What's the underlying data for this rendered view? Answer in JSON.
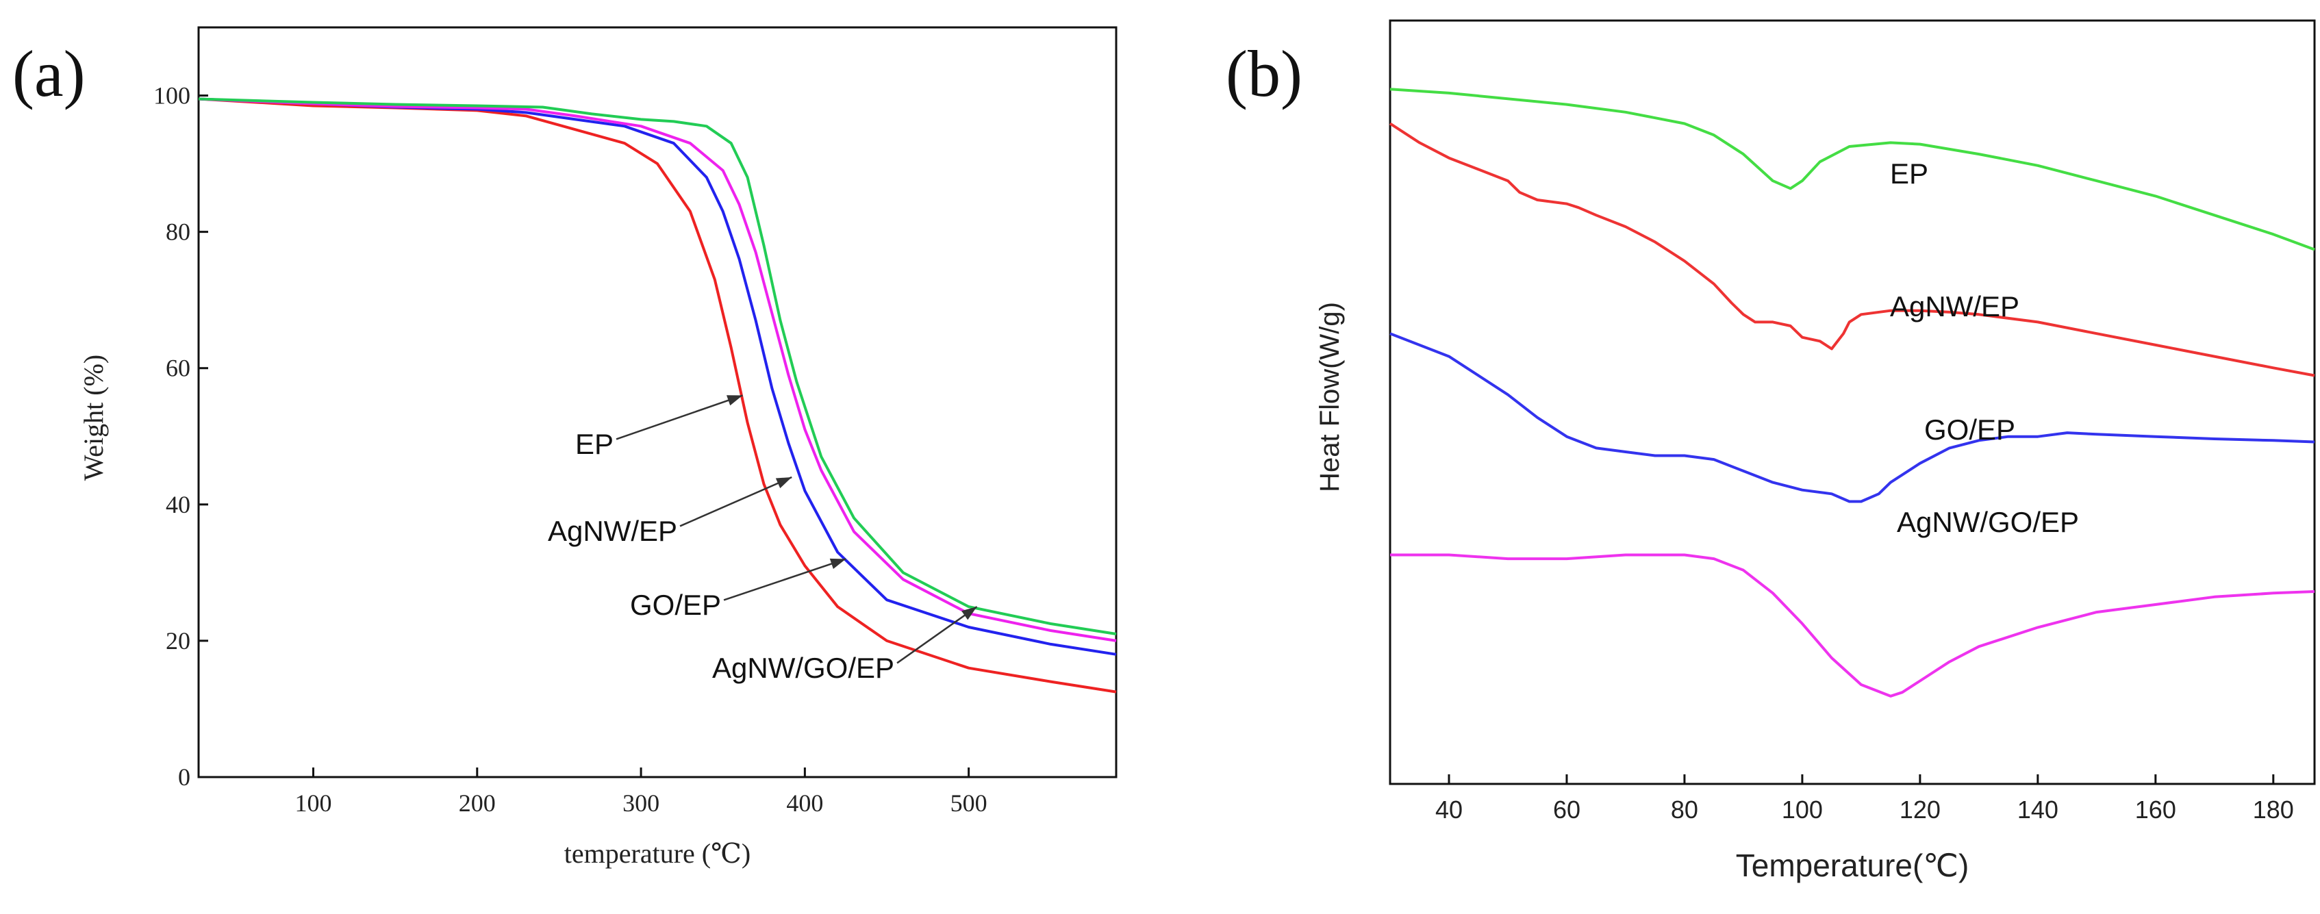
{
  "chart_data": [
    {
      "id": "a",
      "panel_label": "(a)",
      "type": "line",
      "title": "",
      "xlabel": "temperature (℃)",
      "ylabel": "Weight (%)",
      "xlim": [
        30,
        590
      ],
      "ylim": [
        0,
        110
      ],
      "xticks": [
        100,
        200,
        300,
        400,
        500
      ],
      "yticks": [
        0,
        20,
        40,
        60,
        80,
        100
      ],
      "grid": false,
      "series": [
        {
          "name": "EP",
          "color": "#ee2222",
          "x": [
            30,
            100,
            150,
            200,
            230,
            260,
            290,
            310,
            330,
            345,
            355,
            365,
            375,
            385,
            400,
            420,
            450,
            500,
            550,
            590
          ],
          "y": [
            99.5,
            98.5,
            98.2,
            97.8,
            97,
            95,
            93,
            90,
            83,
            73,
            63,
            52,
            43,
            37,
            31,
            25,
            20,
            16,
            14,
            12.5
          ]
        },
        {
          "name": "AgNW/EP",
          "color": "#2222ee",
          "x": [
            30,
            100,
            150,
            200,
            230,
            260,
            290,
            320,
            340,
            350,
            360,
            370,
            380,
            390,
            400,
            420,
            450,
            500,
            550,
            590
          ],
          "y": [
            99.5,
            98.8,
            98.3,
            98,
            97.5,
            96.5,
            95.5,
            93,
            88,
            83,
            76,
            67,
            57,
            49,
            42,
            33,
            26,
            22,
            19.5,
            18
          ]
        },
        {
          "name": "GO/EP",
          "color": "#ee22ee",
          "x": [
            30,
            100,
            150,
            200,
            230,
            260,
            300,
            330,
            350,
            360,
            370,
            380,
            390,
            400,
            410,
            430,
            460,
            500,
            550,
            590
          ],
          "y": [
            99.5,
            98.8,
            98.4,
            98.2,
            98,
            97,
            95.5,
            93,
            89,
            84,
            77,
            68,
            59,
            51,
            45,
            36,
            29,
            24,
            21.5,
            20
          ]
        },
        {
          "name": "AgNW/GO/EP",
          "color": "#22cc55",
          "x": [
            30,
            100,
            150,
            200,
            240,
            270,
            300,
            320,
            340,
            355,
            365,
            375,
            385,
            395,
            410,
            430,
            460,
            500,
            550,
            590
          ],
          "y": [
            99.5,
            99,
            98.7,
            98.5,
            98.3,
            97.3,
            96.5,
            96.2,
            95.5,
            93,
            88,
            78,
            67,
            58,
            47,
            38,
            30,
            25,
            22.5,
            21
          ]
        }
      ],
      "annotations": [
        {
          "text": "EP",
          "target": [
            362,
            56
          ]
        },
        {
          "text": "AgNW/EP",
          "target": [
            392,
            44
          ]
        },
        {
          "text": "GO/EP",
          "target": [
            425,
            32
          ]
        },
        {
          "text": "AgNW/GO/EP",
          "target": [
            505,
            25
          ]
        }
      ]
    },
    {
      "id": "b",
      "panel_label": "(b)",
      "type": "line",
      "title": "",
      "xlabel": "Temperature(℃)",
      "ylabel": "Heat Flow(W/g)",
      "xlim": [
        30,
        187
      ],
      "ylim": [
        0,
        100
      ],
      "xticks": [
        40,
        60,
        80,
        100,
        120,
        140,
        160,
        180
      ],
      "yticks": [],
      "grid": false,
      "series": [
        {
          "name": "EP",
          "color": "#44dd44",
          "x": [
            30,
            40,
            60,
            70,
            80,
            85,
            90,
            95,
            98,
            100,
            103,
            108,
            115,
            120,
            130,
            140,
            150,
            160,
            170,
            180,
            187
          ],
          "y": [
            91,
            90.5,
            89,
            88,
            86.5,
            85,
            82.5,
            79,
            78,
            79,
            81.5,
            83.5,
            84,
            83.8,
            82.5,
            81,
            79,
            77,
            74.5,
            72,
            70
          ]
        },
        {
          "name": "AgNW/EP",
          "color": "#ee3333",
          "x": [
            30,
            35,
            40,
            45,
            50,
            52,
            55,
            60,
            62,
            65,
            70,
            75,
            80,
            85,
            88,
            90,
            92,
            95,
            98,
            100,
            103,
            105,
            107,
            108,
            110,
            115,
            120,
            125,
            130,
            140,
            150,
            160,
            170,
            180,
            187
          ],
          "y": [
            86.5,
            84,
            82,
            80.5,
            79,
            77.5,
            76.5,
            76,
            75.5,
            74.5,
            73,
            71,
            68.5,
            65.5,
            63,
            61.5,
            60.5,
            60.5,
            60,
            58.5,
            58,
            57,
            59,
            60.5,
            61.5,
            62,
            62,
            61.8,
            61.5,
            60.5,
            59,
            57.5,
            56,
            54.5,
            53.5
          ]
        },
        {
          "name": "GO/EP",
          "color": "#3333ee",
          "x": [
            30,
            40,
            50,
            55,
            60,
            65,
            70,
            75,
            80,
            85,
            90,
            95,
            100,
            105,
            108,
            110,
            113,
            115,
            120,
            125,
            130,
            135,
            140,
            145,
            150,
            160,
            170,
            180,
            187
          ],
          "y": [
            59,
            56,
            51,
            48,
            45.5,
            44,
            43.5,
            43,
            43,
            42.5,
            41,
            39.5,
            38.5,
            38,
            37,
            37,
            38,
            39.5,
            42,
            44,
            45,
            45.5,
            45.5,
            46,
            45.8,
            45.5,
            45.2,
            45,
            44.8
          ]
        },
        {
          "name": "AgNW/GO/EP",
          "color": "#ee33ee",
          "x": [
            30,
            40,
            50,
            60,
            70,
            80,
            85,
            90,
            95,
            100,
            105,
            110,
            115,
            117,
            120,
            125,
            130,
            140,
            150,
            160,
            170,
            180,
            187
          ],
          "y": [
            30,
            30,
            29.5,
            29.5,
            30,
            30,
            29.5,
            28,
            25,
            21,
            16.5,
            13,
            11.5,
            12,
            13.5,
            16,
            18,
            20.5,
            22.5,
            23.5,
            24.5,
            25,
            25.2
          ]
        }
      ],
      "annotations": [
        {
          "text": "EP",
          "anchor": [
            139,
            93
          ]
        },
        {
          "text": "AgNW/EP",
          "anchor": [
            139,
            68
          ]
        },
        {
          "text": "GO/EP",
          "anchor": [
            151,
            51
          ]
        },
        {
          "text": "AgNW/GO/EP",
          "anchor": [
            147,
            31
          ]
        }
      ]
    }
  ]
}
